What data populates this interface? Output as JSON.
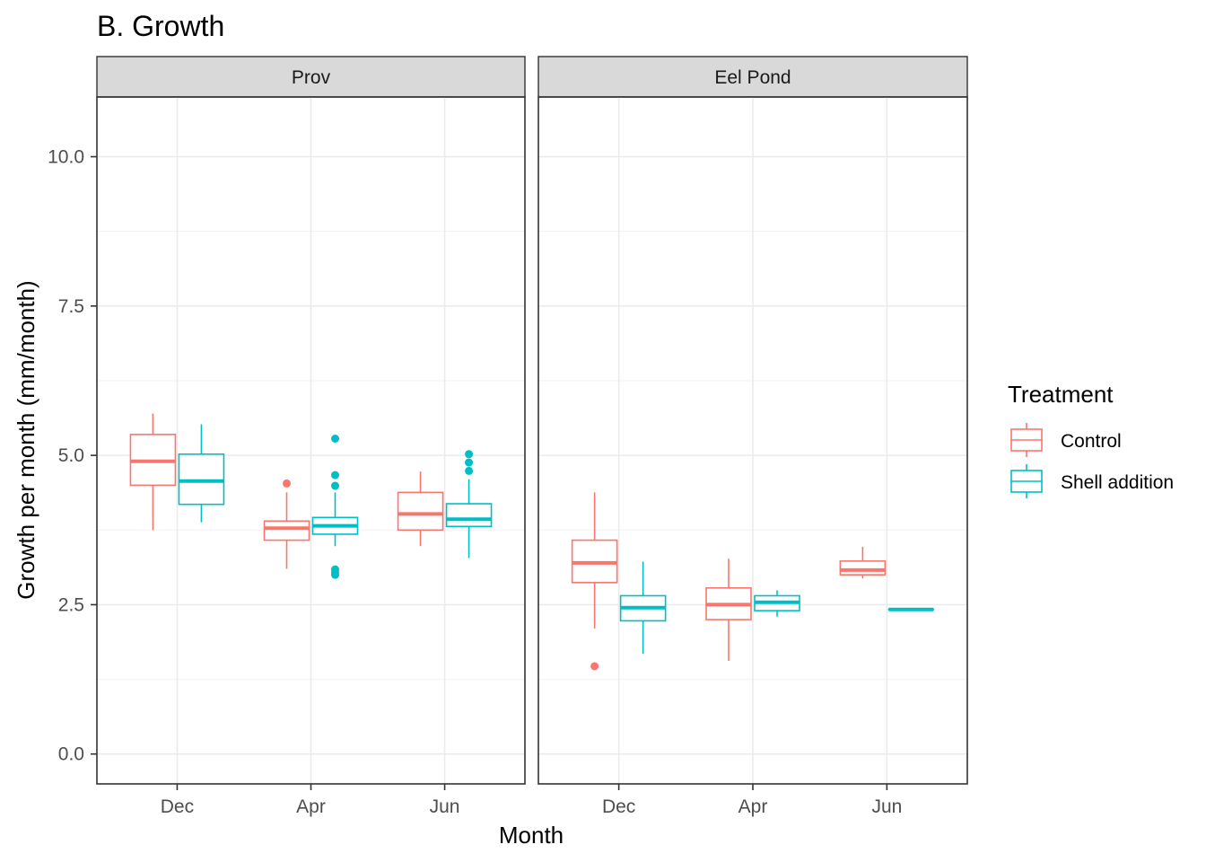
{
  "chart_data": {
    "type": "boxplot",
    "title": "B. Growth",
    "xlabel": "Month",
    "ylabel": "Growth per month (mm/month)",
    "ylim": [
      -0.5,
      11.0
    ],
    "yticks": [
      0.0,
      2.5,
      5.0,
      7.5,
      10.0
    ],
    "ytick_labels": [
      "0.0",
      "2.5",
      "5.0",
      "7.5",
      "10.0"
    ],
    "categories": [
      "Dec",
      "Apr",
      "Jun"
    ],
    "grid": true,
    "legend": {
      "title": "Treatment",
      "position": "right",
      "entries": [
        {
          "name": "Control",
          "color": "#F8766D"
        },
        {
          "name": "Shell addition",
          "color": "#00BFC4"
        }
      ]
    },
    "panels": [
      {
        "name": "Prov",
        "groups": [
          {
            "category": "Dec",
            "treatment": "Control",
            "whisker_low": 3.75,
            "q1": 4.5,
            "median": 4.9,
            "q3": 5.35,
            "whisker_high": 5.7,
            "outliers": []
          },
          {
            "category": "Dec",
            "treatment": "Shell addition",
            "whisker_low": 3.88,
            "q1": 4.18,
            "median": 4.57,
            "q3": 5.02,
            "whisker_high": 5.52,
            "outliers": []
          },
          {
            "category": "Apr",
            "treatment": "Control",
            "whisker_low": 3.1,
            "q1": 3.58,
            "median": 3.78,
            "q3": 3.9,
            "whisker_high": 4.38,
            "outliers": [
              4.53
            ]
          },
          {
            "category": "Apr",
            "treatment": "Shell addition",
            "whisker_low": 3.48,
            "q1": 3.68,
            "median": 3.82,
            "q3": 3.96,
            "whisker_high": 4.38,
            "outliers": [
              3.0,
              3.04,
              3.09,
              4.49,
              4.67,
              5.28
            ]
          },
          {
            "category": "Jun",
            "treatment": "Control",
            "whisker_low": 3.48,
            "q1": 3.75,
            "median": 4.02,
            "q3": 4.38,
            "whisker_high": 4.73,
            "outliers": []
          },
          {
            "category": "Jun",
            "treatment": "Shell addition",
            "whisker_low": 3.28,
            "q1": 3.81,
            "median": 3.93,
            "q3": 4.19,
            "whisker_high": 4.6,
            "outliers": [
              4.74,
              4.88,
              5.02
            ]
          }
        ]
      },
      {
        "name": "Eel Pond",
        "groups": [
          {
            "category": "Dec",
            "treatment": "Control",
            "whisker_low": 2.1,
            "q1": 2.87,
            "median": 3.2,
            "q3": 3.58,
            "whisker_high": 4.38,
            "outliers": [
              1.47
            ]
          },
          {
            "category": "Dec",
            "treatment": "Shell addition",
            "whisker_low": 1.68,
            "q1": 2.23,
            "median": 2.45,
            "q3": 2.65,
            "whisker_high": 3.22,
            "outliers": []
          },
          {
            "category": "Apr",
            "treatment": "Control",
            "whisker_low": 1.56,
            "q1": 2.25,
            "median": 2.5,
            "q3": 2.78,
            "whisker_high": 3.27,
            "outliers": []
          },
          {
            "category": "Apr",
            "treatment": "Shell addition",
            "whisker_low": 2.3,
            "q1": 2.4,
            "median": 2.54,
            "q3": 2.65,
            "whisker_high": 2.74,
            "outliers": []
          },
          {
            "category": "Jun",
            "treatment": "Control",
            "whisker_low": 2.94,
            "q1": 3.0,
            "median": 3.08,
            "q3": 3.23,
            "whisker_high": 3.47,
            "outliers": []
          },
          {
            "category": "Jun",
            "treatment": "Shell addition",
            "whisker_low": 2.42,
            "q1": 2.42,
            "median": 2.42,
            "q3": 2.42,
            "whisker_high": 2.42,
            "outliers": []
          }
        ]
      }
    ]
  }
}
